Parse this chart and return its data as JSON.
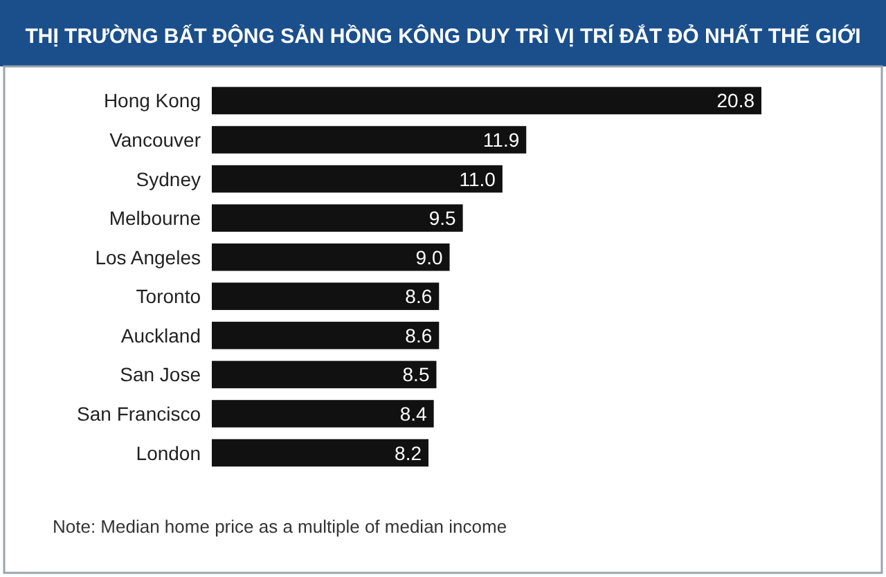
{
  "chart_data": {
    "type": "bar",
    "orientation": "horizontal",
    "title": "THỊ TRƯỜNG BẤT ĐỘNG SẢN HỒNG KÔNG DUY TRÌ VỊ TRÍ ĐẮT ĐỎ NHẤT THẾ GIỚI",
    "categories": [
      "Hong Kong",
      "Vancouver",
      "Sydney",
      "Melbourne",
      "Los Angeles",
      "Toronto",
      "Auckland",
      "San Jose",
      "San Francisco",
      "London"
    ],
    "values": [
      20.8,
      11.9,
      11.0,
      9.5,
      9.0,
      8.6,
      8.6,
      8.5,
      8.4,
      8.2
    ],
    "value_labels": [
      "20.8",
      "11.9",
      "11.0",
      "9.5",
      "9.0",
      "8.6",
      "8.6",
      "8.5",
      "8.4",
      "8.2"
    ],
    "color": "#111111",
    "data_labels": true,
    "annotations": [
      "Note: Median home price as a multiple of median income"
    ]
  }
}
